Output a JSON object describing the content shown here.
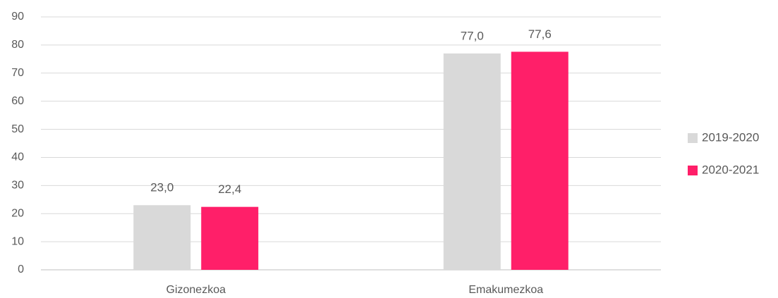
{
  "chart_data": {
    "type": "bar",
    "categories": [
      "Gizonezkoa",
      "Emakumezkoa"
    ],
    "series": [
      {
        "name": "2019-2020",
        "color": "#d9d9d9",
        "values": [
          23.0,
          77.0
        ],
        "value_labels": [
          "23,0",
          "77,0"
        ]
      },
      {
        "name": "2020-2021",
        "color": "#ff1f69",
        "values": [
          22.4,
          77.6
        ],
        "value_labels": [
          "22,4",
          "77,6"
        ]
      }
    ],
    "ylim": [
      0,
      90
    ],
    "yticks": [
      0,
      10,
      20,
      30,
      40,
      50,
      60,
      70,
      80,
      90
    ],
    "grid": true,
    "legend": "right"
  }
}
